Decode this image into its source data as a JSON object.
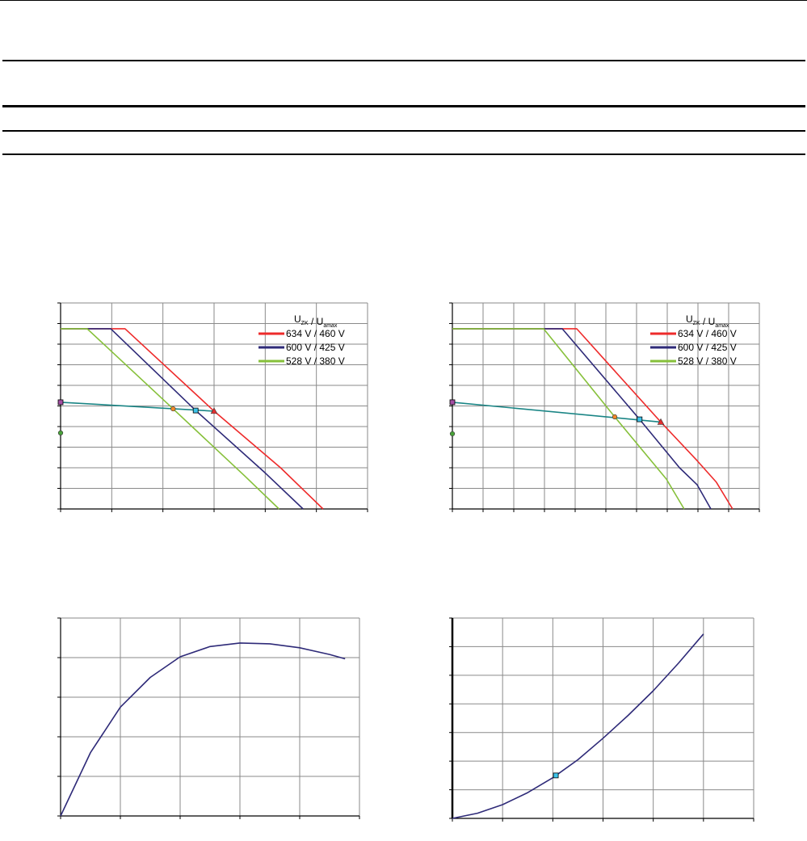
{
  "colors": {
    "red": "#ee2b2b",
    "navy": "#2e2a78",
    "green": "#86c03a",
    "teal": "#1a8585",
    "grid": "#8a8a8a"
  },
  "chart_data": [
    {
      "type": "line",
      "xlim": [
        0,
        6
      ],
      "ylim": [
        0,
        10
      ],
      "grid": true,
      "legend_position": "top-right",
      "legend_title": {
        "main": "U",
        "sub1": "ZK",
        "sep": "/",
        "main2": "U",
        "sub2": "amax"
      },
      "series": [
        {
          "name": "634 V / 460 V",
          "color": "#ee2b2b",
          "points": [
            [
              0,
              8.75
            ],
            [
              1.26,
              8.75
            ],
            [
              3.0,
              4.75
            ],
            [
              4.3,
              2.0
            ],
            [
              5.13,
              0
            ]
          ]
        },
        {
          "name": "600 V / 425 V",
          "color": "#2e2a78",
          "points": [
            [
              0,
              8.75
            ],
            [
              0.98,
              8.75
            ],
            [
              2.64,
              4.78
            ],
            [
              4.0,
              1.75
            ],
            [
              4.74,
              0
            ]
          ]
        },
        {
          "name": "528 V / 380 V",
          "color": "#86c03a",
          "points": [
            [
              0,
              8.75
            ],
            [
              0.52,
              8.75
            ],
            [
              2.2,
              4.86
            ],
            [
              3.6,
              1.6
            ],
            [
              4.27,
              0
            ]
          ]
        },
        {
          "color": "#1a8585",
          "points": [
            [
              0,
              5.18
            ],
            [
              3.0,
              4.75
            ]
          ]
        }
      ],
      "markers": [
        {
          "shape": "square",
          "color": "#a34fa3",
          "x": 0,
          "y": 5.18
        },
        {
          "shape": "circle",
          "color": "#4aa23a",
          "x": 0,
          "y": 3.69
        },
        {
          "shape": "circle",
          "color": "#f08a2a",
          "x": 2.2,
          "y": 4.86
        },
        {
          "shape": "square",
          "color": "#3ec3ea",
          "x": 2.64,
          "y": 4.78
        },
        {
          "shape": "triangle",
          "color": "#e23030",
          "x": 3.0,
          "y": 4.75
        }
      ]
    },
    {
      "type": "line",
      "xlim": [
        0,
        10
      ],
      "ylim": [
        0,
        10
      ],
      "grid": true,
      "legend_position": "top-right",
      "legend_title": {
        "main": "U",
        "sub1": "ZK",
        "sep": "/",
        "main2": "U",
        "sub2": "amax"
      },
      "series": [
        {
          "name": "634 V / 460 V",
          "color": "#ee2b2b",
          "points": [
            [
              0,
              8.75
            ],
            [
              4.05,
              8.75
            ],
            [
              6.79,
              4.22
            ],
            [
              7.97,
              2.35
            ],
            [
              8.6,
              1.3
            ],
            [
              9.13,
              0
            ]
          ]
        },
        {
          "name": "600 V / 425 V",
          "color": "#2e2a78",
          "points": [
            [
              0,
              8.75
            ],
            [
              3.58,
              8.75
            ],
            [
              6.1,
              4.35
            ],
            [
              7.4,
              2.0
            ],
            [
              7.97,
              1.18
            ],
            [
              8.42,
              0
            ]
          ]
        },
        {
          "name": "528 V / 380 V",
          "color": "#86c03a",
          "points": [
            [
              0,
              8.75
            ],
            [
              2.97,
              8.75
            ],
            [
              5.29,
              4.47
            ],
            [
              6.97,
              1.45
            ],
            [
              7.55,
              0
            ]
          ]
        },
        {
          "color": "#1a8585",
          "points": [
            [
              0,
              5.18
            ],
            [
              6.79,
              4.22
            ]
          ]
        }
      ],
      "markers": [
        {
          "shape": "square",
          "color": "#a34fa3",
          "x": 0,
          "y": 5.18
        },
        {
          "shape": "circle",
          "color": "#4aa23a",
          "x": 0,
          "y": 3.65
        },
        {
          "shape": "circle",
          "color": "#f08a2a",
          "x": 5.29,
          "y": 4.47
        },
        {
          "shape": "square",
          "color": "#3ec3ea",
          "x": 6.1,
          "y": 4.35
        },
        {
          "shape": "triangle",
          "color": "#e23030",
          "x": 6.79,
          "y": 4.22
        }
      ]
    },
    {
      "type": "line",
      "xlim": [
        0,
        5
      ],
      "ylim": [
        0,
        5
      ],
      "grid": true,
      "series": [
        {
          "color": "#2e2a78",
          "points": [
            [
              0,
              0
            ],
            [
              0.5,
              1.6
            ],
            [
              1,
              2.75
            ],
            [
              1.5,
              3.5
            ],
            [
              2,
              4.02
            ],
            [
              2.5,
              4.28
            ],
            [
              3,
              4.37
            ],
            [
              3.5,
              4.35
            ],
            [
              4,
              4.25
            ],
            [
              4.5,
              4.08
            ],
            [
              4.76,
              3.97
            ]
          ]
        }
      ],
      "markers": []
    },
    {
      "type": "line",
      "xlim": [
        0,
        6
      ],
      "ylim": [
        0,
        7
      ],
      "grid": true,
      "series": [
        {
          "color": "#2e2a78",
          "points": [
            [
              0,
              0
            ],
            [
              0.5,
              0.18
            ],
            [
              1,
              0.48
            ],
            [
              1.5,
              0.9
            ],
            [
              2,
              1.42
            ],
            [
              2.5,
              2.05
            ],
            [
              3,
              2.8
            ],
            [
              3.5,
              3.6
            ],
            [
              4,
              4.46
            ],
            [
              4.5,
              5.42
            ],
            [
              5,
              6.44
            ]
          ]
        }
      ],
      "markers": [
        {
          "shape": "square",
          "color": "#3ec3ea",
          "x": 2.06,
          "y": 1.5
        }
      ]
    }
  ]
}
